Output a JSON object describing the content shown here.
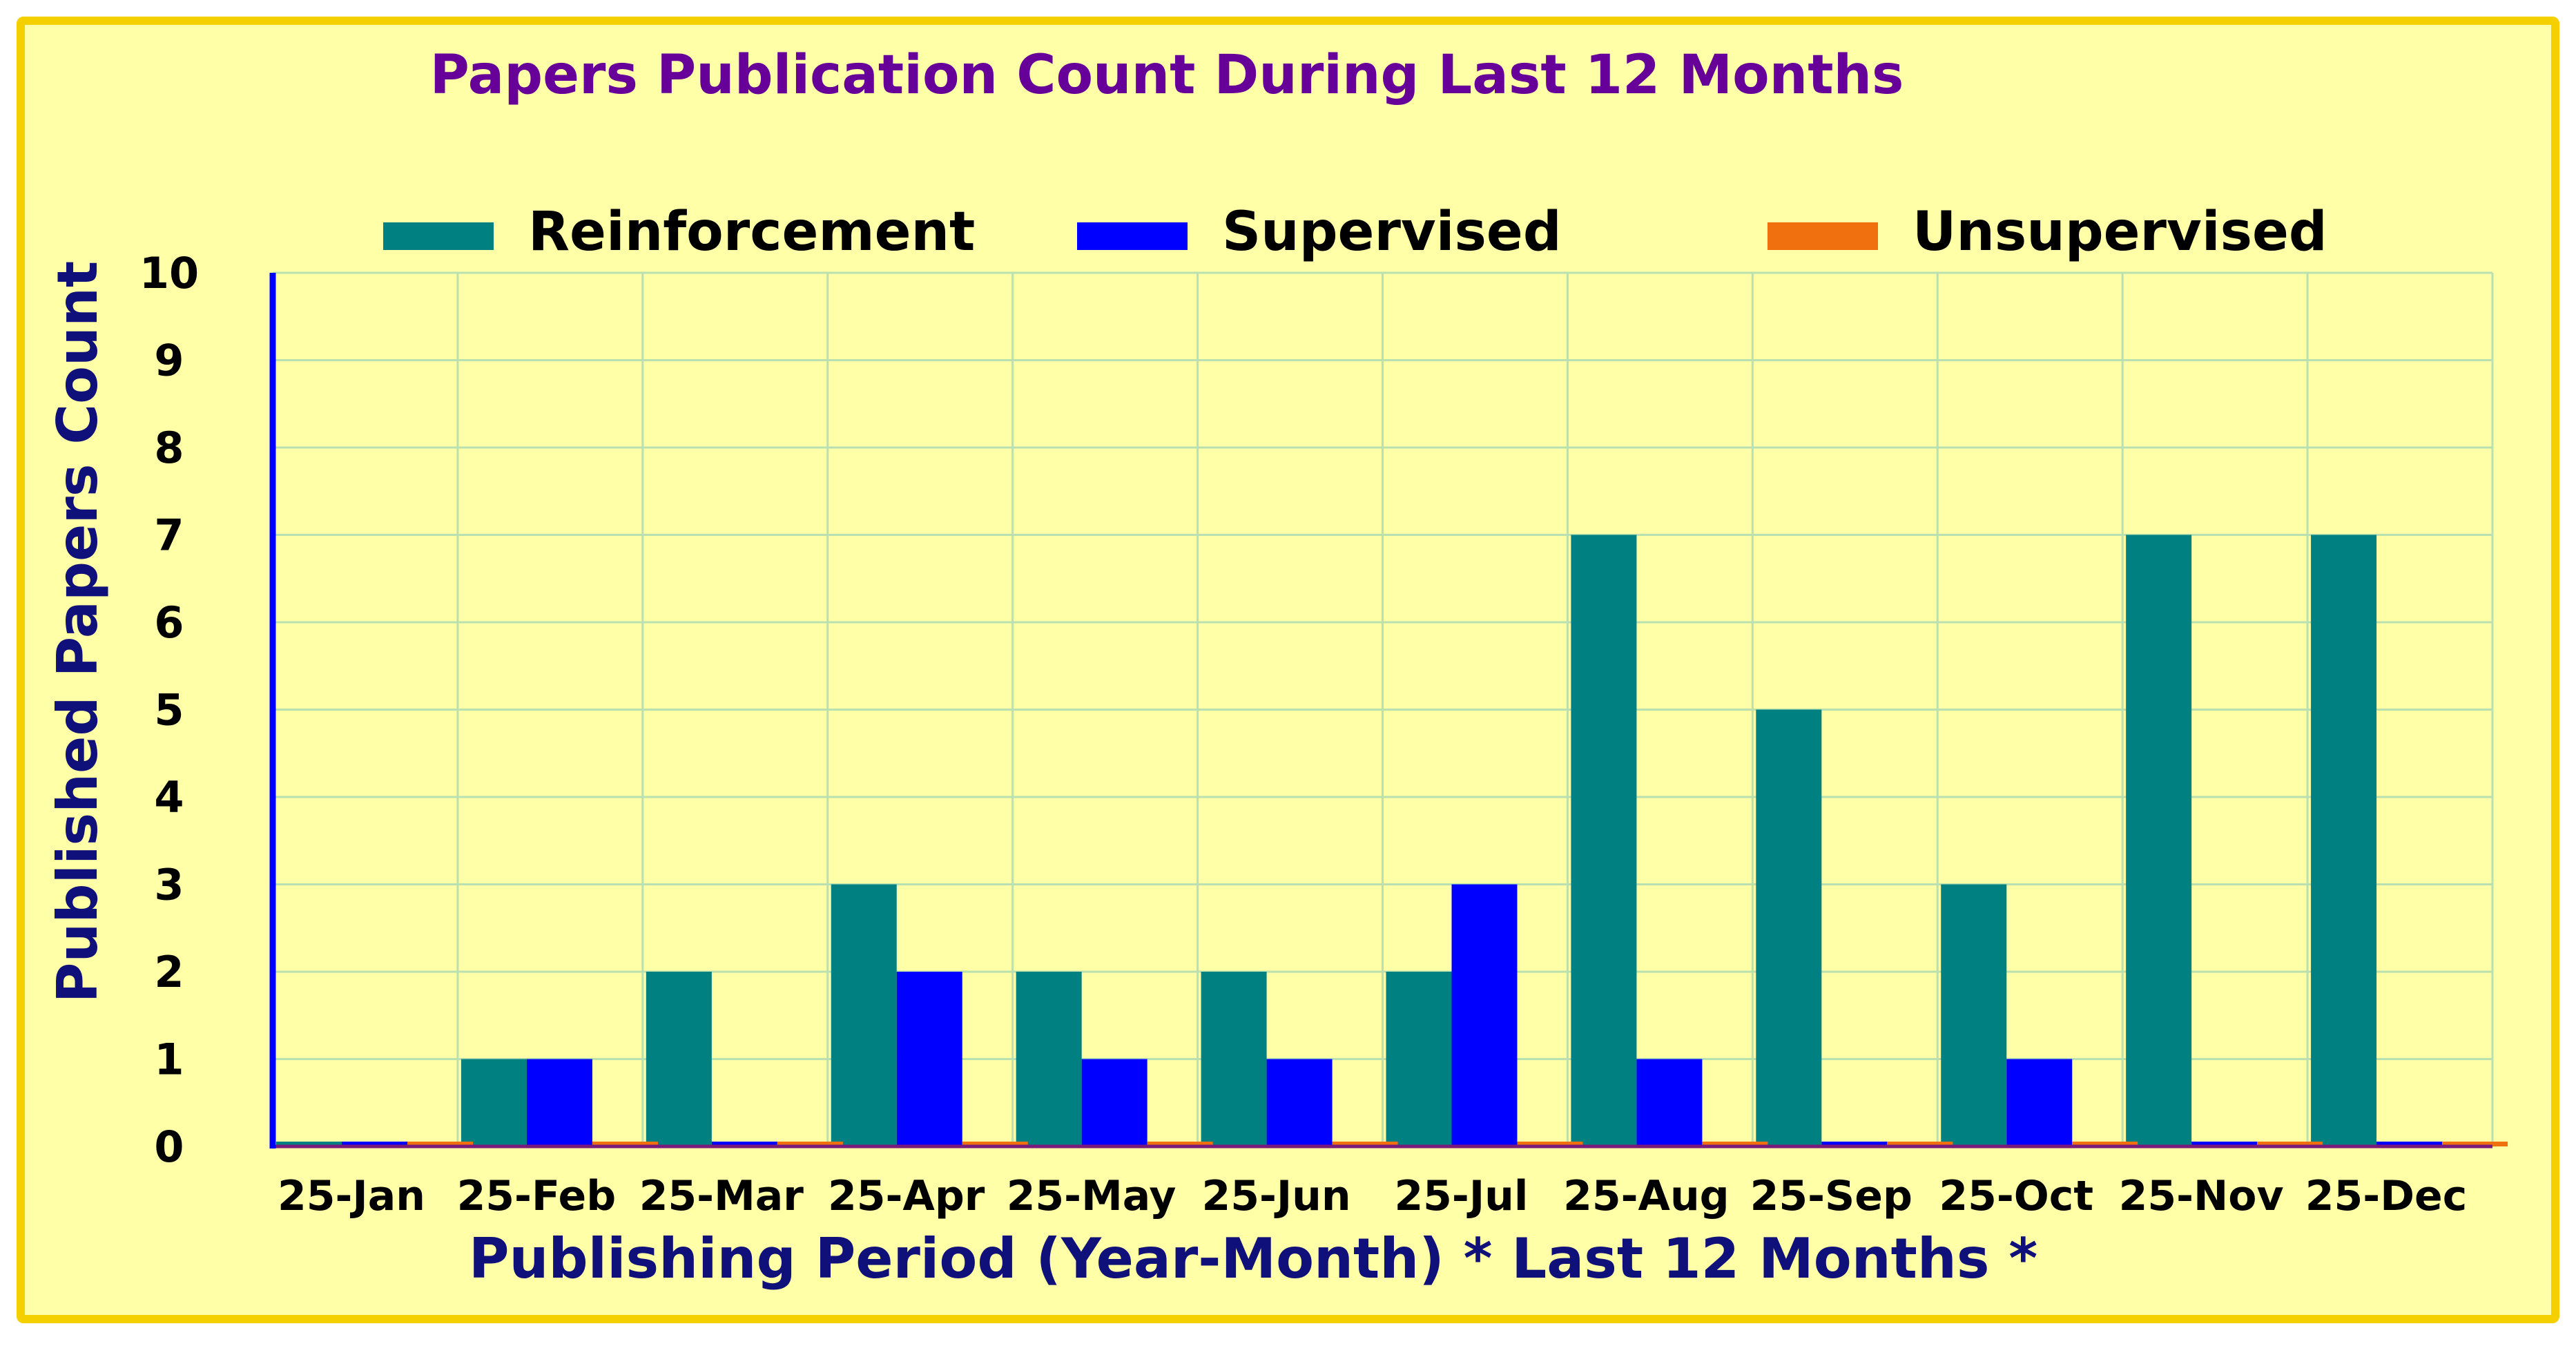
{
  "chart_data": {
    "type": "bar",
    "title": "Papers Publication Count During Last 12 Months",
    "xlabel": "Publishing Period (Year-Month) * Last 12 Months *",
    "ylabel": "Published Papers Count",
    "ylim": [
      0,
      10
    ],
    "yticks": [
      "0",
      "1",
      "2",
      "3",
      "4",
      "5",
      "6",
      "7",
      "8",
      "9",
      "10"
    ],
    "grid": true,
    "legend_position": "top",
    "categories": [
      "25-Jan",
      "25-Feb",
      "25-Mar",
      "25-Apr",
      "25-May",
      "25-Jun",
      "25-Jul",
      "25-Aug",
      "25-Sep",
      "25-Oct",
      "25-Nov",
      "25-Dec"
    ],
    "series": [
      {
        "name": "Reinforcement",
        "color": "#008080",
        "values": [
          0,
          1,
          2,
          3,
          2,
          2,
          2,
          7,
          5,
          3,
          7,
          7
        ]
      },
      {
        "name": "Supervised",
        "color": "#0000ff",
        "values": [
          0,
          1,
          0,
          2,
          1,
          1,
          3,
          1,
          0,
          1,
          0,
          0
        ]
      },
      {
        "name": "Unsupervised",
        "color": "#f07010",
        "values": [
          0,
          0,
          0,
          0,
          0,
          0,
          0,
          0,
          0,
          0,
          0,
          0
        ]
      }
    ],
    "colors": {
      "panel_background": "#ffffa8",
      "panel_border": "#f5d000",
      "title_color": "#660099",
      "axis_label_color": "#10107a",
      "gridline_color": "#b8e0b0",
      "y_axis_line": "#0000ff",
      "x_axis_line": "#7a1a7a"
    }
  }
}
